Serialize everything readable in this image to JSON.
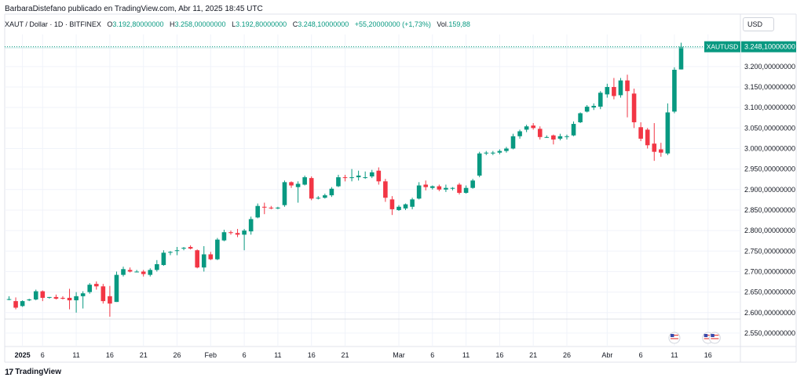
{
  "header": {
    "publisher_line": "BarbaraDistefano publicado en TradingView.com, Abr 11, 2025 18:45 UTC"
  },
  "ohlc": {
    "symbol": "XAUT / Dollar · 1D · BITFINEX",
    "open_label": "O",
    "open_value": "3.192,80000000",
    "high_label": "H",
    "high_value": "3.258,00000000",
    "low_label": "L",
    "low_value": "3.192,80000000",
    "close_label": "C",
    "close_value": "3.248,10000000",
    "change": "+55,20000000 (+1,73%)",
    "volume_label": "Vol.",
    "volume_value": "159,88"
  },
  "currency_selector": "USD",
  "brand": {
    "logo": "17",
    "name": "TradingView"
  },
  "colors": {
    "up": "#089981",
    "down": "#F23645",
    "grid": "#f0f3fa",
    "axis_text": "#131722"
  },
  "chart_data": {
    "type": "candlestick",
    "symbol": "XAUT / Dollar",
    "interval": "1D",
    "exchange": "BITFINEX",
    "y_axis": {
      "range": [
        2525,
        3278
      ],
      "ticks": [
        2550,
        2600,
        2650,
        2700,
        2750,
        2800,
        2850,
        2900,
        2950,
        3000,
        3050,
        3100,
        3150,
        3200
      ],
      "tick_labels": [
        "2.550,00000000",
        "2.600,00000000",
        "2.650,00000000",
        "2.700,00000000",
        "2.750,00000000",
        "2.800,00000000",
        "2.850,00000000",
        "2.900,00000000",
        "2.950,00000000",
        "3.000,00000000",
        "3.050,00000000",
        "3.100,00000000",
        "3.150,00000000",
        "3.200,00000000"
      ]
    },
    "x_axis": {
      "labels": [
        {
          "i": 2,
          "text": "2025",
          "bold": true
        },
        {
          "i": 5,
          "text": "6"
        },
        {
          "i": 10,
          "text": "11"
        },
        {
          "i": 15,
          "text": "16"
        },
        {
          "i": 20,
          "text": "21"
        },
        {
          "i": 25,
          "text": "26"
        },
        {
          "i": 30,
          "text": "Feb"
        },
        {
          "i": 35,
          "text": "6"
        },
        {
          "i": 40,
          "text": "11"
        },
        {
          "i": 45,
          "text": "16"
        },
        {
          "i": 50,
          "text": "21"
        },
        {
          "i": 58,
          "text": "Mar"
        },
        {
          "i": 63,
          "text": "6"
        },
        {
          "i": 68,
          "text": "11"
        },
        {
          "i": 73,
          "text": "16"
        },
        {
          "i": 78,
          "text": "21"
        },
        {
          "i": 83,
          "text": "26"
        },
        {
          "i": 89,
          "text": "Abr"
        },
        {
          "i": 94,
          "text": "6"
        },
        {
          "i": 99,
          "text": "11"
        },
        {
          "i": 104,
          "text": "16"
        }
      ]
    },
    "price_label": {
      "symbol": "XAUTUSD",
      "value": "3.248,10000000",
      "price": 3248.1
    },
    "series": [
      {
        "name": "XAUTUSD",
        "candles": [
          {
            "i": 0,
            "o": 2632,
            "h": 2640,
            "l": 2630,
            "c": 2633
          },
          {
            "i": 1,
            "o": 2628,
            "h": 2637,
            "l": 2608,
            "c": 2612
          },
          {
            "i": 2,
            "o": 2616,
            "h": 2630,
            "l": 2614,
            "c": 2628
          },
          {
            "i": 3,
            "o": 2630,
            "h": 2634,
            "l": 2628,
            "c": 2632
          },
          {
            "i": 4,
            "o": 2632,
            "h": 2656,
            "l": 2630,
            "c": 2652
          },
          {
            "i": 5,
            "o": 2652,
            "h": 2654,
            "l": 2628,
            "c": 2636
          },
          {
            "i": 6,
            "o": 2636,
            "h": 2638,
            "l": 2634,
            "c": 2638
          },
          {
            "i": 7,
            "o": 2638,
            "h": 2644,
            "l": 2632,
            "c": 2634
          },
          {
            "i": 8,
            "o": 2636,
            "h": 2640,
            "l": 2632,
            "c": 2634
          },
          {
            "i": 9,
            "o": 2636,
            "h": 2658,
            "l": 2608,
            "c": 2630
          },
          {
            "i": 10,
            "o": 2630,
            "h": 2650,
            "l": 2600,
            "c": 2640
          },
          {
            "i": 11,
            "o": 2640,
            "h": 2652,
            "l": 2610,
            "c": 2647
          },
          {
            "i": 12,
            "o": 2650,
            "h": 2672,
            "l": 2646,
            "c": 2668
          },
          {
            "i": 13,
            "o": 2670,
            "h": 2676,
            "l": 2656,
            "c": 2664
          },
          {
            "i": 14,
            "o": 2664,
            "h": 2670,
            "l": 2622,
            "c": 2628
          },
          {
            "i": 15,
            "o": 2640,
            "h": 2665,
            "l": 2590,
            "c": 2622
          },
          {
            "i": 16,
            "o": 2626,
            "h": 2700,
            "l": 2626,
            "c": 2692
          },
          {
            "i": 17,
            "o": 2692,
            "h": 2712,
            "l": 2688,
            "c": 2706
          },
          {
            "i": 18,
            "o": 2704,
            "h": 2710,
            "l": 2698,
            "c": 2700
          },
          {
            "i": 19,
            "o": 2700,
            "h": 2704,
            "l": 2698,
            "c": 2700
          },
          {
            "i": 20,
            "o": 2700,
            "h": 2704,
            "l": 2688,
            "c": 2694
          },
          {
            "i": 21,
            "o": 2692,
            "h": 2708,
            "l": 2688,
            "c": 2704
          },
          {
            "i": 22,
            "o": 2704,
            "h": 2728,
            "l": 2700,
            "c": 2718
          },
          {
            "i": 23,
            "o": 2716,
            "h": 2752,
            "l": 2714,
            "c": 2746
          },
          {
            "i": 24,
            "o": 2746,
            "h": 2750,
            "l": 2740,
            "c": 2748
          },
          {
            "i": 25,
            "o": 2750,
            "h": 2760,
            "l": 2740,
            "c": 2752
          },
          {
            "i": 26,
            "o": 2756,
            "h": 2760,
            "l": 2752,
            "c": 2758
          },
          {
            "i": 27,
            "o": 2760,
            "h": 2764,
            "l": 2754,
            "c": 2756
          },
          {
            "i": 28,
            "o": 2752,
            "h": 2754,
            "l": 2708,
            "c": 2710
          },
          {
            "i": 29,
            "o": 2710,
            "h": 2762,
            "l": 2700,
            "c": 2742
          },
          {
            "i": 30,
            "o": 2742,
            "h": 2748,
            "l": 2728,
            "c": 2730
          },
          {
            "i": 31,
            "o": 2730,
            "h": 2782,
            "l": 2728,
            "c": 2778
          },
          {
            "i": 32,
            "o": 2776,
            "h": 2802,
            "l": 2774,
            "c": 2796
          },
          {
            "i": 33,
            "o": 2796,
            "h": 2800,
            "l": 2790,
            "c": 2794
          },
          {
            "i": 34,
            "o": 2794,
            "h": 2804,
            "l": 2784,
            "c": 2790
          },
          {
            "i": 35,
            "o": 2790,
            "h": 2804,
            "l": 2752,
            "c": 2800
          },
          {
            "i": 36,
            "o": 2798,
            "h": 2834,
            "l": 2790,
            "c": 2828
          },
          {
            "i": 37,
            "o": 2832,
            "h": 2866,
            "l": 2830,
            "c": 2860
          },
          {
            "i": 38,
            "o": 2858,
            "h": 2868,
            "l": 2840,
            "c": 2856
          },
          {
            "i": 39,
            "o": 2856,
            "h": 2860,
            "l": 2852,
            "c": 2854
          },
          {
            "i": 40,
            "o": 2854,
            "h": 2858,
            "l": 2852,
            "c": 2856
          },
          {
            "i": 41,
            "o": 2862,
            "h": 2922,
            "l": 2858,
            "c": 2918
          },
          {
            "i": 42,
            "o": 2918,
            "h": 2920,
            "l": 2904,
            "c": 2910
          },
          {
            "i": 43,
            "o": 2906,
            "h": 2920,
            "l": 2868,
            "c": 2914
          },
          {
            "i": 44,
            "o": 2912,
            "h": 2934,
            "l": 2910,
            "c": 2930
          },
          {
            "i": 45,
            "o": 2928,
            "h": 2932,
            "l": 2874,
            "c": 2878
          },
          {
            "i": 46,
            "o": 2878,
            "h": 2884,
            "l": 2876,
            "c": 2880
          },
          {
            "i": 47,
            "o": 2880,
            "h": 2890,
            "l": 2878,
            "c": 2886
          },
          {
            "i": 48,
            "o": 2886,
            "h": 2906,
            "l": 2882,
            "c": 2902
          },
          {
            "i": 49,
            "o": 2908,
            "h": 2936,
            "l": 2906,
            "c": 2930
          },
          {
            "i": 50,
            "o": 2930,
            "h": 2936,
            "l": 2920,
            "c": 2928
          },
          {
            "i": 51,
            "o": 2928,
            "h": 2950,
            "l": 2920,
            "c": 2930
          },
          {
            "i": 52,
            "o": 2930,
            "h": 2946,
            "l": 2922,
            "c": 2934
          },
          {
            "i": 53,
            "o": 2930,
            "h": 2944,
            "l": 2926,
            "c": 2930
          },
          {
            "i": 54,
            "o": 2932,
            "h": 2948,
            "l": 2928,
            "c": 2942
          },
          {
            "i": 55,
            "o": 2946,
            "h": 2954,
            "l": 2912,
            "c": 2920
          },
          {
            "i": 56,
            "o": 2920,
            "h": 2926,
            "l": 2870,
            "c": 2880
          },
          {
            "i": 57,
            "o": 2876,
            "h": 2884,
            "l": 2838,
            "c": 2852
          },
          {
            "i": 58,
            "o": 2850,
            "h": 2862,
            "l": 2848,
            "c": 2858
          },
          {
            "i": 59,
            "o": 2854,
            "h": 2866,
            "l": 2850,
            "c": 2864
          },
          {
            "i": 60,
            "o": 2858,
            "h": 2880,
            "l": 2852,
            "c": 2876
          },
          {
            "i": 61,
            "o": 2878,
            "h": 2918,
            "l": 2876,
            "c": 2910
          },
          {
            "i": 62,
            "o": 2912,
            "h": 2922,
            "l": 2898,
            "c": 2906
          },
          {
            "i": 63,
            "o": 2904,
            "h": 2910,
            "l": 2900,
            "c": 2908
          },
          {
            "i": 64,
            "o": 2908,
            "h": 2912,
            "l": 2896,
            "c": 2900
          },
          {
            "i": 65,
            "o": 2900,
            "h": 2912,
            "l": 2894,
            "c": 2904
          },
          {
            "i": 66,
            "o": 2902,
            "h": 2906,
            "l": 2898,
            "c": 2904
          },
          {
            "i": 67,
            "o": 2912,
            "h": 2916,
            "l": 2888,
            "c": 2892
          },
          {
            "i": 68,
            "o": 2892,
            "h": 2910,
            "l": 2890,
            "c": 2904
          },
          {
            "i": 69,
            "o": 2904,
            "h": 2926,
            "l": 2902,
            "c": 2922
          },
          {
            "i": 70,
            "o": 2934,
            "h": 2992,
            "l": 2930,
            "c": 2988
          },
          {
            "i": 71,
            "o": 2988,
            "h": 2994,
            "l": 2984,
            "c": 2990
          },
          {
            "i": 72,
            "o": 2988,
            "h": 2994,
            "l": 2984,
            "c": 2990
          },
          {
            "i": 73,
            "o": 2990,
            "h": 2998,
            "l": 2986,
            "c": 2994
          },
          {
            "i": 74,
            "o": 2994,
            "h": 3004,
            "l": 2990,
            "c": 3000
          },
          {
            "i": 75,
            "o": 3000,
            "h": 3036,
            "l": 2998,
            "c": 3030
          },
          {
            "i": 76,
            "o": 3030,
            "h": 3046,
            "l": 3024,
            "c": 3042
          },
          {
            "i": 77,
            "o": 3046,
            "h": 3058,
            "l": 3040,
            "c": 3054
          },
          {
            "i": 78,
            "o": 3056,
            "h": 3062,
            "l": 3046,
            "c": 3050
          },
          {
            "i": 79,
            "o": 3048,
            "h": 3054,
            "l": 3022,
            "c": 3028
          },
          {
            "i": 80,
            "o": 3028,
            "h": 3032,
            "l": 3026,
            "c": 3028
          },
          {
            "i": 81,
            "o": 3032,
            "h": 3034,
            "l": 3010,
            "c": 3022
          },
          {
            "i": 82,
            "o": 3024,
            "h": 3036,
            "l": 3020,
            "c": 3030
          },
          {
            "i": 83,
            "o": 3028,
            "h": 3034,
            "l": 3022,
            "c": 3030
          },
          {
            "i": 84,
            "o": 3032,
            "h": 3066,
            "l": 3030,
            "c": 3060
          },
          {
            "i": 85,
            "o": 3064,
            "h": 3088,
            "l": 3062,
            "c": 3086
          },
          {
            "i": 86,
            "o": 3090,
            "h": 3106,
            "l": 3088,
            "c": 3102
          },
          {
            "i": 87,
            "o": 3100,
            "h": 3110,
            "l": 3094,
            "c": 3104
          },
          {
            "i": 88,
            "o": 3102,
            "h": 3140,
            "l": 3096,
            "c": 3136
          },
          {
            "i": 89,
            "o": 3132,
            "h": 3158,
            "l": 3124,
            "c": 3150
          },
          {
            "i": 90,
            "o": 3150,
            "h": 3172,
            "l": 3120,
            "c": 3128
          },
          {
            "i": 91,
            "o": 3130,
            "h": 3172,
            "l": 3124,
            "c": 3166
          },
          {
            "i": 92,
            "o": 3166,
            "h": 3180,
            "l": 3076,
            "c": 3140
          },
          {
            "i": 93,
            "o": 3134,
            "h": 3146,
            "l": 3050,
            "c": 3064
          },
          {
            "i": 94,
            "o": 3052,
            "h": 3064,
            "l": 3018,
            "c": 3024
          },
          {
            "i": 95,
            "o": 3046,
            "h": 3050,
            "l": 3000,
            "c": 3008
          },
          {
            "i": 96,
            "o": 3012,
            "h": 3062,
            "l": 2970,
            "c": 2992
          },
          {
            "i": 97,
            "o": 2998,
            "h": 3014,
            "l": 2980,
            "c": 2990
          },
          {
            "i": 98,
            "o": 2988,
            "h": 3110,
            "l": 2984,
            "c": 3088
          },
          {
            "i": 99,
            "o": 3090,
            "h": 3198,
            "l": 3086,
            "c": 3192
          },
          {
            "i": 100,
            "o": 3192.8,
            "h": 3258,
            "l": 3192.8,
            "c": 3248.1
          }
        ]
      }
    ],
    "events": [
      {
        "i": 99,
        "name": "us-flag-event"
      },
      {
        "i": 104,
        "name": "us-flag-event"
      },
      {
        "i": 105,
        "name": "us-flag-event"
      }
    ]
  }
}
